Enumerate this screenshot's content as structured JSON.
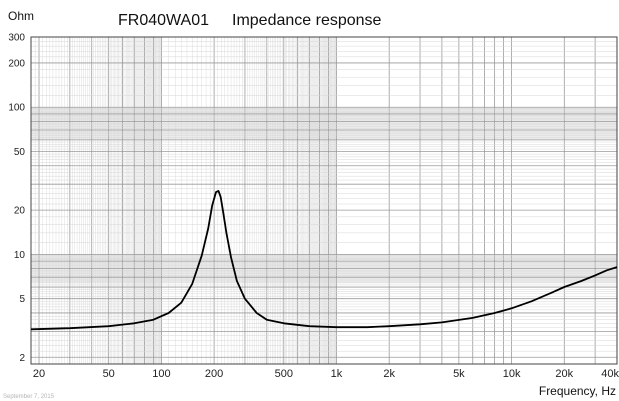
{
  "chart_data": {
    "type": "line",
    "title": "FR040WA01",
    "subtitle": "Impedance response",
    "ylabel": "Ohm",
    "xlabel": "Frequency, Hz",
    "date": "September 7, 2015",
    "x_scale": "log",
    "y_scale": "log",
    "xlim": [
      18,
      40000
    ],
    "ylim": [
      1.8,
      300
    ],
    "grid": true,
    "x_tick_labels": [
      "20",
      "50",
      "100",
      "200",
      "500",
      "1k",
      "2k",
      "5k",
      "10k",
      "20k",
      "40k"
    ],
    "x_tick_values": [
      20,
      50,
      100,
      200,
      500,
      1000,
      2000,
      5000,
      10000,
      20000,
      40000
    ],
    "y_tick_labels": [
      "2",
      "5",
      "10",
      "20",
      "50",
      "100",
      "200",
      "300"
    ],
    "y_tick_values": [
      2,
      5,
      10,
      20,
      50,
      100,
      200,
      300
    ],
    "series": [
      {
        "color": "#000000",
        "x": [
          18,
          30,
          50,
          70,
          90,
          110,
          130,
          150,
          170,
          185,
          195,
          205,
          212,
          218,
          225,
          235,
          250,
          270,
          300,
          350,
          400,
          500,
          700,
          1000,
          1500,
          2000,
          3000,
          4000,
          6000,
          8000,
          10000,
          13000,
          17000,
          20000,
          25000,
          30000,
          35000,
          40000
        ],
        "y": [
          3.1,
          3.15,
          3.25,
          3.4,
          3.6,
          4.0,
          4.7,
          6.3,
          9.8,
          15,
          21.5,
          26.5,
          27.0,
          24.5,
          19.5,
          14.0,
          9.5,
          6.6,
          5.0,
          4.0,
          3.6,
          3.4,
          3.25,
          3.2,
          3.2,
          3.25,
          3.35,
          3.45,
          3.7,
          4.0,
          4.3,
          4.8,
          5.5,
          6.0,
          6.6,
          7.2,
          7.8,
          8.2
        ]
      }
    ]
  }
}
